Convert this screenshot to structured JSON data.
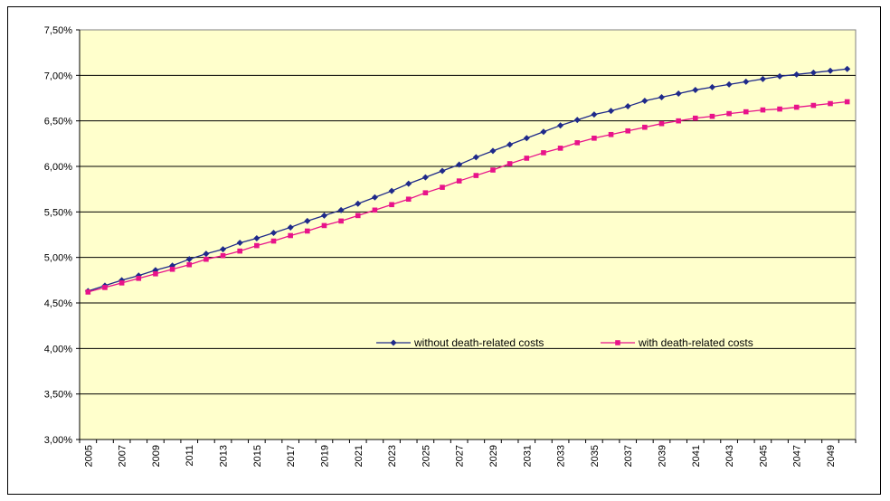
{
  "chart_data": {
    "type": "line",
    "title": "",
    "xlabel": "",
    "ylabel": "",
    "ylim": [
      3.0,
      7.5
    ],
    "y_ticks": [
      "3,00%",
      "3,50%",
      "4,00%",
      "4,50%",
      "5,00%",
      "5,50%",
      "6,00%",
      "6,50%",
      "7,00%",
      "7,50%"
    ],
    "x_labels": [
      "2005",
      "2007",
      "2009",
      "2011",
      "2013",
      "2015",
      "2017",
      "2019",
      "2021",
      "2023",
      "2025",
      "2027",
      "2029",
      "2031",
      "2033",
      "2035",
      "2037",
      "2039",
      "2041",
      "2043",
      "2045",
      "2047",
      "2049"
    ],
    "x": [
      2005,
      2006,
      2007,
      2008,
      2009,
      2010,
      2011,
      2012,
      2013,
      2014,
      2015,
      2016,
      2017,
      2018,
      2019,
      2020,
      2021,
      2022,
      2023,
      2024,
      2025,
      2026,
      2027,
      2028,
      2029,
      2030,
      2031,
      2032,
      2033,
      2034,
      2035,
      2036,
      2037,
      2038,
      2039,
      2040,
      2041,
      2042,
      2043,
      2044,
      2045,
      2046,
      2047,
      2048,
      2049,
      2050
    ],
    "grid": "horizontal",
    "plot_background": "#ffffcc",
    "legend_position": "center-right",
    "series": [
      {
        "name": "without death-related costs",
        "color": "#1f2a8a",
        "marker": "diamond",
        "values": [
          4.63,
          4.69,
          4.75,
          4.8,
          4.86,
          4.91,
          4.98,
          5.04,
          5.09,
          5.16,
          5.21,
          5.27,
          5.33,
          5.4,
          5.46,
          5.52,
          5.59,
          5.66,
          5.73,
          5.81,
          5.88,
          5.95,
          6.02,
          6.1,
          6.17,
          6.24,
          6.31,
          6.38,
          6.45,
          6.51,
          6.57,
          6.61,
          6.66,
          6.72,
          6.76,
          6.8,
          6.84,
          6.87,
          6.9,
          6.93,
          6.96,
          6.99,
          7.01,
          7.03,
          7.05,
          7.07
        ]
      },
      {
        "name": "with death-related costs",
        "color": "#e8138a",
        "marker": "square",
        "values": [
          4.62,
          4.67,
          4.72,
          4.77,
          4.82,
          4.87,
          4.92,
          4.98,
          5.02,
          5.07,
          5.13,
          5.18,
          5.24,
          5.29,
          5.35,
          5.4,
          5.46,
          5.52,
          5.58,
          5.64,
          5.71,
          5.77,
          5.84,
          5.9,
          5.96,
          6.03,
          6.09,
          6.15,
          6.2,
          6.26,
          6.31,
          6.35,
          6.39,
          6.43,
          6.47,
          6.5,
          6.53,
          6.55,
          6.58,
          6.6,
          6.62,
          6.63,
          6.65,
          6.67,
          6.69,
          6.71
        ]
      }
    ]
  }
}
